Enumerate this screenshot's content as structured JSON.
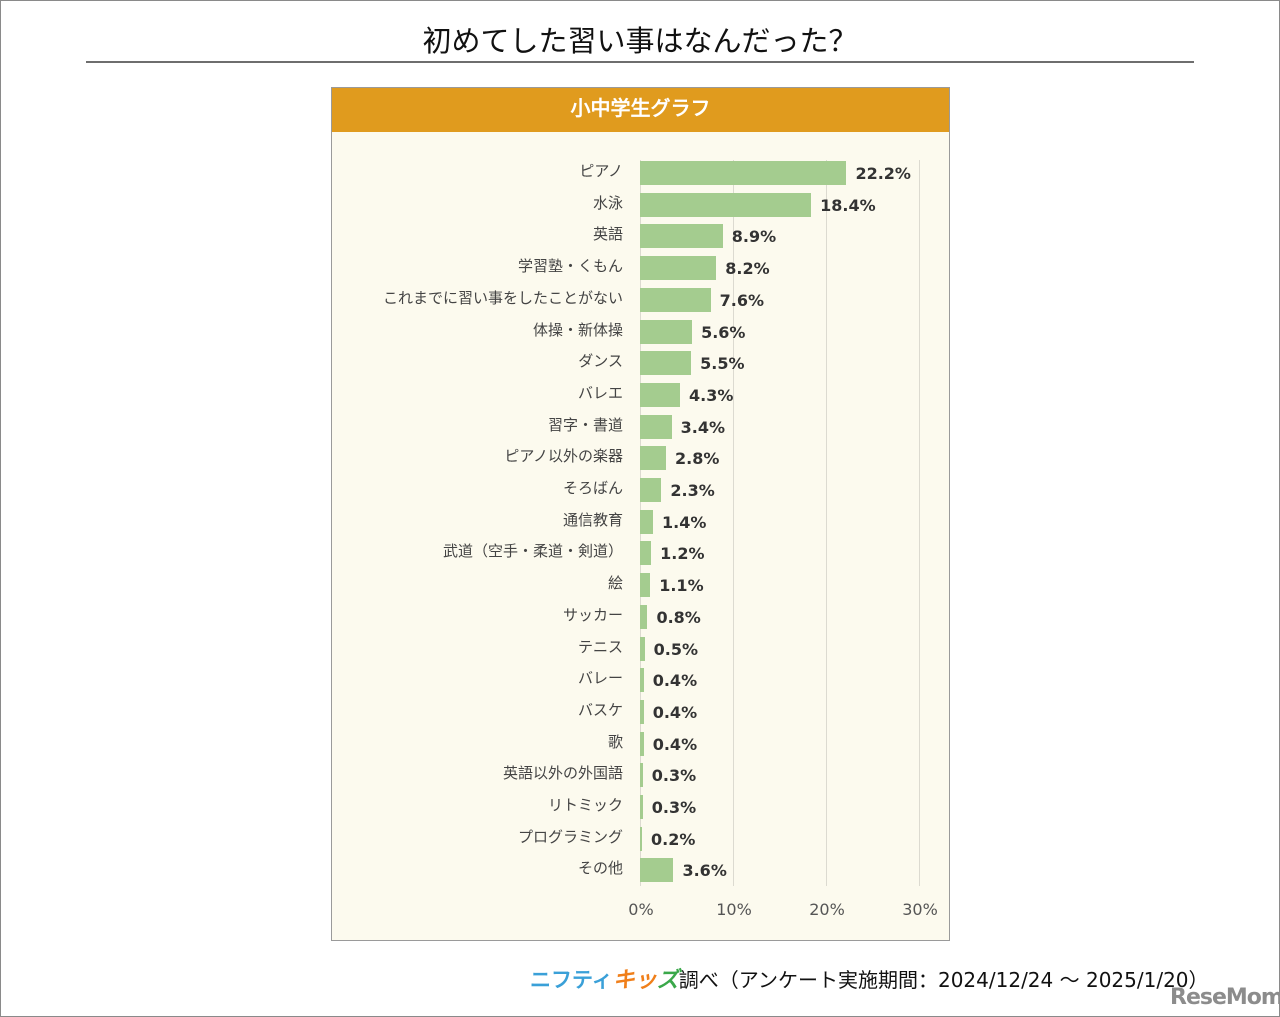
{
  "page": {
    "title": "初めてした習い事はなんだった？",
    "footer": {
      "brand_part1": "ニフティ",
      "brand_part2": "キッ",
      "brand_part3": "ズ",
      "text": "調べ（アンケート実施期間：2024/12/24 ～ 2025/1/20）"
    },
    "watermark": "ReseMom"
  },
  "chart_data": {
    "type": "bar",
    "orientation": "horizontal",
    "title": "小中学生グラフ",
    "xlabel": "",
    "ylabel": "",
    "xlim": [
      0,
      30
    ],
    "x_ticks": [
      "0%",
      "10%",
      "20%",
      "30%"
    ],
    "grid": true,
    "legend": null,
    "categories": [
      "ピアノ",
      "水泳",
      "英語",
      "学習塾・くもん",
      "これまでに習い事をしたことがない",
      "体操・新体操",
      "ダンス",
      "バレエ",
      "習字・書道",
      "ピアノ以外の楽器",
      "そろばん",
      "通信教育",
      "武道（空手・柔道・剣道）",
      "絵",
      "サッカー",
      "テニス",
      "バレー",
      "バスケ",
      "歌",
      "英語以外の外国語",
      "リトミック",
      "プログラミング",
      "その他"
    ],
    "values": [
      22.2,
      18.4,
      8.9,
      8.2,
      7.6,
      5.6,
      5.5,
      4.3,
      3.4,
      2.8,
      2.3,
      1.4,
      1.2,
      1.1,
      0.8,
      0.5,
      0.4,
      0.4,
      0.4,
      0.3,
      0.3,
      0.2,
      3.6
    ],
    "value_labels": [
      "22.2%",
      "18.4%",
      "8.9%",
      "8.2%",
      "7.6%",
      "5.6%",
      "5.5%",
      "4.3%",
      "3.4%",
      "2.8%",
      "2.3%",
      "1.4%",
      "1.2%",
      "1.1%",
      "0.8%",
      "0.5%",
      "0.4%",
      "0.4%",
      "0.4%",
      "0.3%",
      "0.3%",
      "0.2%",
      "3.6%"
    ],
    "colors": {
      "bar": "#a4cc8f",
      "header": "#e09b1e",
      "plot_bg": "#fcfaee"
    }
  }
}
